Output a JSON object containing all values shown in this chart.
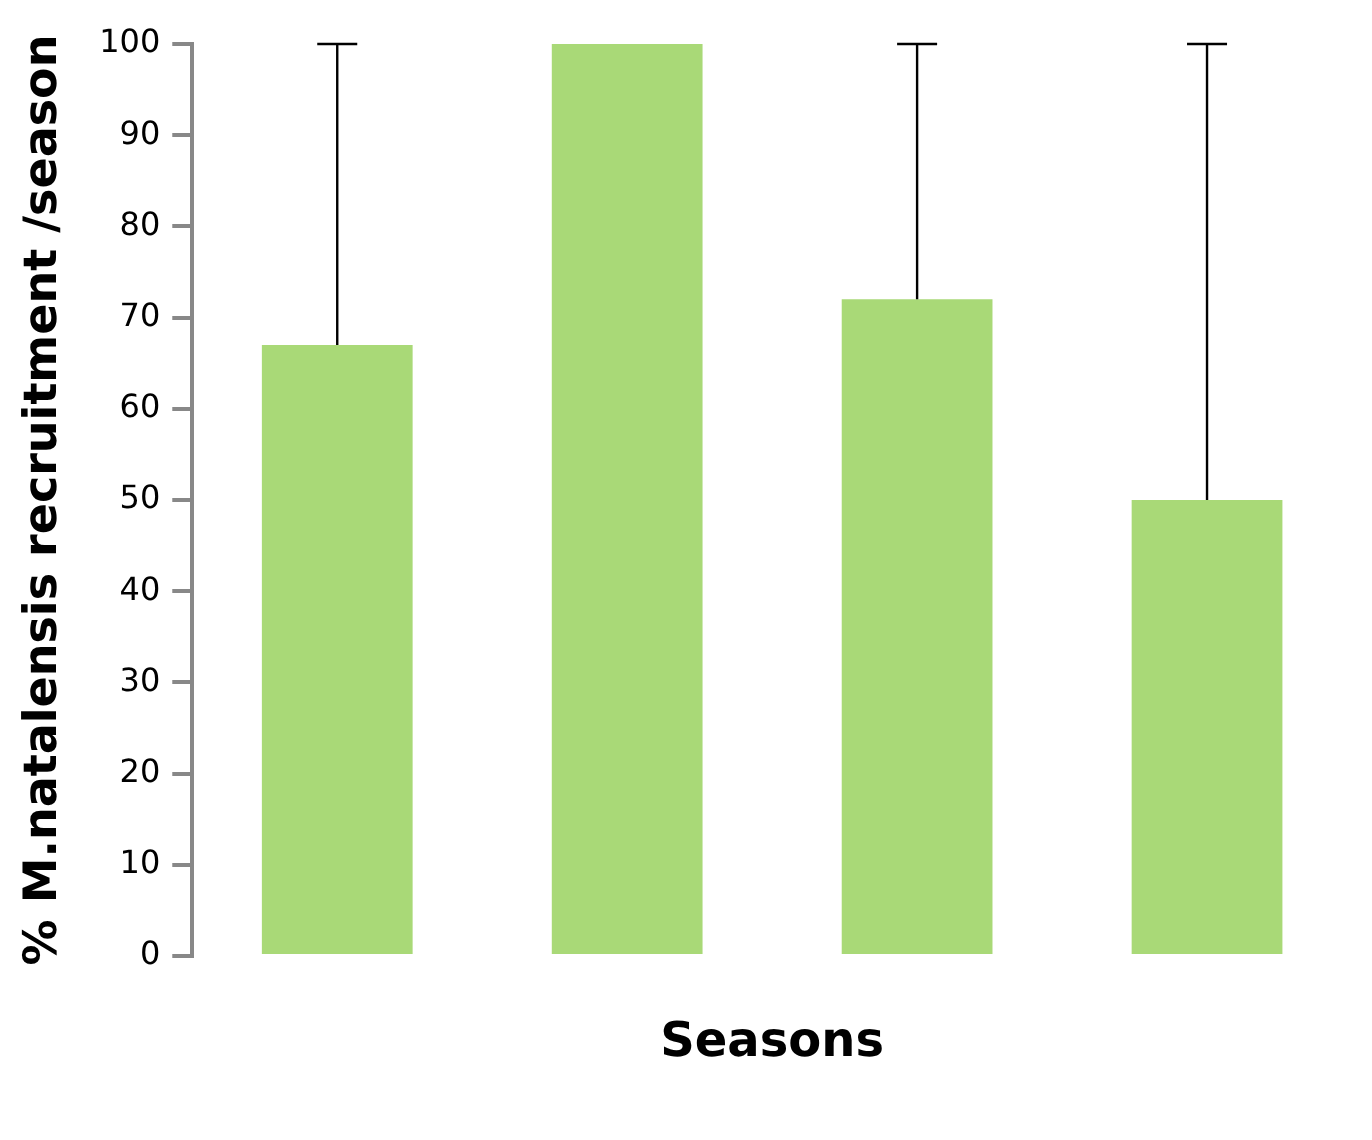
{
  "chart_data": {
    "type": "bar",
    "xlabel": "Seasons",
    "ylabel": "% M.natalensis recruitment /season",
    "categories": [
      null,
      null,
      null,
      null
    ],
    "values": [
      67,
      100,
      72,
      50
    ],
    "errors": [
      [
        67,
        100
      ],
      null,
      [
        72,
        100
      ],
      [
        50,
        100
      ]
    ],
    "color": "#a9d977",
    "ylim": [
      0,
      100
    ],
    "yticks": [
      0,
      10,
      20,
      30,
      40,
      50,
      60,
      70,
      80,
      90,
      100
    ],
    "grid": false,
    "legend": false
  }
}
